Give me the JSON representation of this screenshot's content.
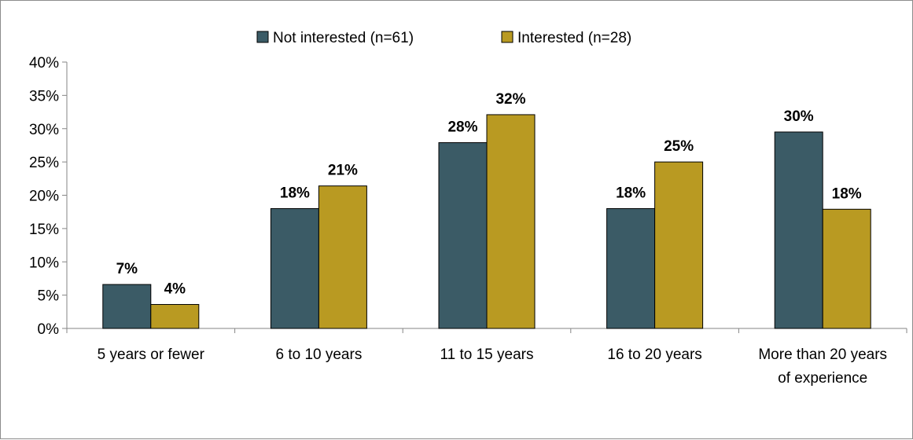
{
  "chart_data": {
    "type": "bar",
    "title": "",
    "xlabel": "",
    "ylabel": "",
    "categories": [
      [
        "5 years or fewer"
      ],
      [
        "6 to 10 years"
      ],
      [
        "11 to 15 years"
      ],
      [
        "16 to 20 years"
      ],
      [
        "More than 20 years",
        "of experience"
      ]
    ],
    "series": [
      {
        "name": "Not interested (n=61)",
        "color": "#3b5b66",
        "values": [
          6.6,
          18.0,
          27.9,
          18.0,
          29.5
        ],
        "labels": [
          "7%",
          "18%",
          "28%",
          "18%",
          "30%"
        ]
      },
      {
        "name": "Interested (n=28)",
        "color": "#b99a22",
        "values": [
          3.6,
          21.4,
          32.1,
          25.0,
          17.9
        ],
        "labels": [
          "4%",
          "21%",
          "32%",
          "25%",
          "18%"
        ]
      }
    ],
    "ylim": [
      0,
      40
    ],
    "yticks": [
      0,
      5,
      10,
      15,
      20,
      25,
      30,
      35,
      40
    ],
    "ytick_labels": [
      "0%",
      "5%",
      "10%",
      "15%",
      "20%",
      "25%",
      "30%",
      "35%",
      "40%"
    ],
    "legend_position": "top-center",
    "grid": false
  }
}
